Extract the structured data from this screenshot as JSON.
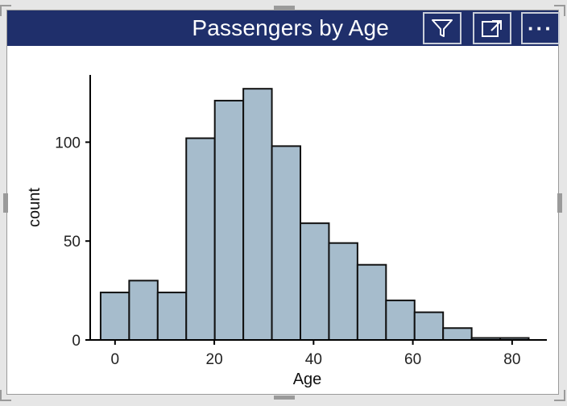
{
  "header": {
    "title": "Passengers by Age",
    "filter_icon": "filter-icon",
    "focus_icon": "focus-mode-icon",
    "more_icon": "more-options-icon",
    "more_label": "···"
  },
  "colors": {
    "header_bg": "#1f2f6b",
    "bar_fill": "#a6bccc",
    "bar_stroke": "#111111"
  },
  "chart_data": {
    "type": "bar",
    "title": "",
    "xlabel": "Age",
    "ylabel": "count",
    "bin_width": 5.75,
    "bins": [
      {
        "x0": -2.9,
        "x1": 2.85,
        "count": 24
      },
      {
        "x0": 2.85,
        "x1": 8.6,
        "count": 30
      },
      {
        "x0": 8.6,
        "x1": 14.35,
        "count": 24
      },
      {
        "x0": 14.35,
        "x1": 20.1,
        "count": 102
      },
      {
        "x0": 20.1,
        "x1": 25.85,
        "count": 121
      },
      {
        "x0": 25.85,
        "x1": 31.6,
        "count": 127
      },
      {
        "x0": 31.6,
        "x1": 37.35,
        "count": 98
      },
      {
        "x0": 37.35,
        "x1": 43.1,
        "count": 59
      },
      {
        "x0": 43.1,
        "x1": 48.85,
        "count": 49
      },
      {
        "x0": 48.85,
        "x1": 54.6,
        "count": 38
      },
      {
        "x0": 54.6,
        "x1": 60.35,
        "count": 20
      },
      {
        "x0": 60.35,
        "x1": 66.1,
        "count": 14
      },
      {
        "x0": 66.1,
        "x1": 71.85,
        "count": 6
      },
      {
        "x0": 71.85,
        "x1": 77.6,
        "count": 1
      },
      {
        "x0": 77.6,
        "x1": 83.35,
        "count": 1
      }
    ],
    "xticks": [
      0,
      20,
      40,
      60,
      80
    ],
    "xtick_labels": [
      "0",
      "20",
      "40",
      "60",
      "80"
    ],
    "yticks": [
      0,
      50,
      100
    ],
    "ytick_labels": [
      "0",
      "50",
      "100"
    ],
    "xlim": [
      -5,
      87
    ],
    "ylim": [
      0,
      134
    ],
    "grid": false,
    "legend": "none"
  }
}
